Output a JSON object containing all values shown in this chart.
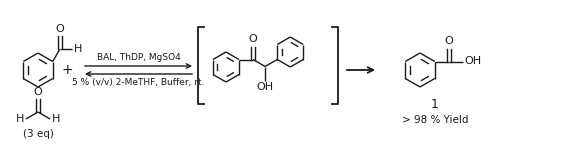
{
  "figsize": [
    5.67,
    1.52
  ],
  "dpi": 100,
  "background_color": "#ffffff",
  "text_color": "#1a1a1a",
  "condition_line1": "BAL, ThDP, MgSO4",
  "condition_line2": "5 % (v/v) 2-MeTHF, Buffer, rt.",
  "label_1": "1",
  "yield_text": "> 98 % Yield",
  "eq_text": "(3 eq)",
  "plus_sign": "+"
}
